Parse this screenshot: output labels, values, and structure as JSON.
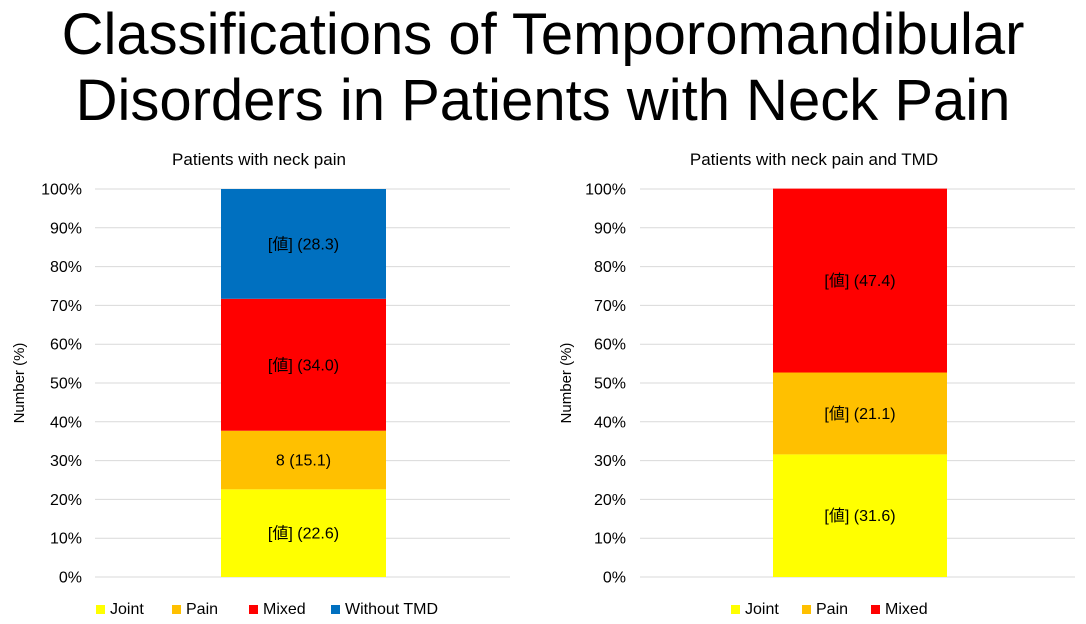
{
  "slide": {
    "title_line1": "Classifications of Temporomandibular",
    "title_line2": "Disorders in Patients with Neck Pain"
  },
  "colors": {
    "Joint": "#FFFF00",
    "Pain": "#FFC000",
    "Mixed": "#FF0000",
    "Without TMD": "#0070C0",
    "gridline": "#D9D9D9"
  },
  "chart_data": [
    {
      "type": "bar",
      "stacked": true,
      "percent_stacked": true,
      "title": "Patients with neck pain",
      "ylabel": "Number (%)",
      "ylim": [
        0,
        100
      ],
      "yticks": [
        "0%",
        "10%",
        "20%",
        "30%",
        "40%",
        "50%",
        "60%",
        "70%",
        "80%",
        "90%",
        "100%"
      ],
      "grid": true,
      "legend_position": "bottom",
      "series": [
        {
          "name": "Joint",
          "value": 22.6,
          "label": "[値] (22.6)"
        },
        {
          "name": "Pain",
          "value": 15.1,
          "label": "8 (15.1)"
        },
        {
          "name": "Mixed",
          "value": 34.0,
          "label": "[値] (34.0)"
        },
        {
          "name": "Without TMD",
          "value": 28.3,
          "label": "[値] (28.3)"
        }
      ]
    },
    {
      "type": "bar",
      "stacked": true,
      "percent_stacked": true,
      "title": "Patients with neck pain and TMD",
      "ylabel": "Number (%)",
      "ylim": [
        0,
        100
      ],
      "yticks": [
        "0%",
        "10%",
        "20%",
        "30%",
        "40%",
        "50%",
        "60%",
        "70%",
        "80%",
        "90%",
        "100%"
      ],
      "grid": true,
      "legend_position": "bottom",
      "series": [
        {
          "name": "Joint",
          "value": 31.6,
          "label": "[値] (31.6)"
        },
        {
          "name": "Pain",
          "value": 21.1,
          "label": "[値] (21.1)"
        },
        {
          "name": "Mixed",
          "value": 47.4,
          "label": "[値] (47.4)"
        }
      ]
    }
  ]
}
